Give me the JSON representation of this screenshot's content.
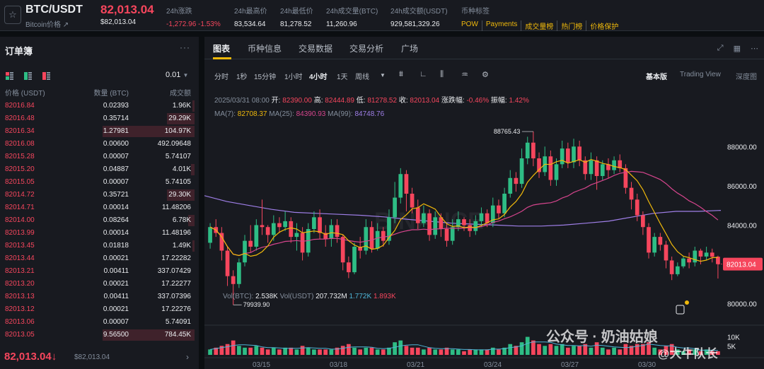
{
  "header": {
    "pair": "BTC/USDT",
    "pair_sub": "Bitcoin价格",
    "last_price": "82,013.04",
    "last_price_sub": "$82,013.04",
    "stats": [
      {
        "label": "24h涨跌",
        "value": "-1,272.96 -1.53%",
        "red": true
      },
      {
        "label": "24h最高价",
        "value": "83,534.64"
      },
      {
        "label": "24h最低价",
        "value": "81,278.52"
      },
      {
        "label": "24h成交量(BTC)",
        "value": "11,260.96"
      },
      {
        "label": "24h成交额(USDT)",
        "value": "929,581,329.26"
      }
    ],
    "tags_label": "币种标签",
    "tags": [
      "POW",
      "Payments",
      "成交量榜",
      "热门榜",
      "价格保护"
    ]
  },
  "orderbook": {
    "title": "订单簿",
    "precision": "0.01",
    "headers": {
      "price": "价格 (USDT)",
      "qty": "数量 (BTC)",
      "total": "成交额"
    },
    "rows": [
      {
        "price": "82016.84",
        "qty": "0.02393",
        "total": "1.96K",
        "depth": 0.02
      },
      {
        "price": "82016.48",
        "qty": "0.35714",
        "total": "29.29K",
        "depth": 0.3
      },
      {
        "price": "82016.34",
        "qty": "1.27981",
        "total": "104.97K",
        "depth": 1.0
      },
      {
        "price": "82016.08",
        "qty": "0.00600",
        "total": "492.09648",
        "depth": 0.0
      },
      {
        "price": "82015.28",
        "qty": "0.00007",
        "total": "5.74107",
        "depth": 0.0
      },
      {
        "price": "82015.20",
        "qty": "0.04887",
        "total": "4.01K",
        "depth": 0.04
      },
      {
        "price": "82015.05",
        "qty": "0.00007",
        "total": "5.74105",
        "depth": 0.0
      },
      {
        "price": "82014.72",
        "qty": "0.35721",
        "total": "29.30K",
        "depth": 0.3
      },
      {
        "price": "82014.71",
        "qty": "0.00014",
        "total": "11.48206",
        "depth": 0.0
      },
      {
        "price": "82014.00",
        "qty": "0.08264",
        "total": "6.78K",
        "depth": 0.07
      },
      {
        "price": "82013.99",
        "qty": "0.00014",
        "total": "11.48196",
        "depth": 0.0
      },
      {
        "price": "82013.45",
        "qty": "0.01818",
        "total": "1.49K",
        "depth": 0.02
      },
      {
        "price": "82013.44",
        "qty": "0.00021",
        "total": "17.22282",
        "depth": 0.0
      },
      {
        "price": "82013.21",
        "qty": "0.00411",
        "total": "337.07429",
        "depth": 0.0
      },
      {
        "price": "82013.20",
        "qty": "0.00021",
        "total": "17.22277",
        "depth": 0.0
      },
      {
        "price": "82013.13",
        "qty": "0.00411",
        "total": "337.07396",
        "depth": 0.0
      },
      {
        "price": "82013.12",
        "qty": "0.00021",
        "total": "17.22276",
        "depth": 0.0
      },
      {
        "price": "82013.06",
        "qty": "0.00007",
        "total": "5.74091",
        "depth": 0.0
      },
      {
        "price": "82013.05",
        "qty": "9.56500",
        "total": "784.45K",
        "depth": 1.0
      }
    ],
    "current_price": "82,013.04",
    "current_arrow": "↓",
    "current_usd": "$82,013.04",
    "more_icon": "chevron-right-icon"
  },
  "chart_tabs": [
    "图表",
    "币种信息",
    "交易数据",
    "交易分析",
    "广场"
  ],
  "intervals": [
    "分时",
    "1秒",
    "15分钟",
    "1小时",
    "4小时",
    "1天",
    "周线"
  ],
  "active_interval": "4小时",
  "views": [
    "基本版",
    "Trading View",
    "深度图"
  ],
  "ohlc": {
    "date": "2025/03/31 08:00",
    "open_label": "开:",
    "open": "82390.00",
    "high_label": "高:",
    "high": "82444.89",
    "low_label": "低:",
    "low": "81278.52",
    "close_label": "收:",
    "close": "82013.04",
    "change_label": "涨跌幅:",
    "change": "-0.46%",
    "amp_label": "振幅:",
    "amp": "1.42%"
  },
  "ma": {
    "ma7_label": "MA(7):",
    "ma7": "82708.37",
    "ma25_label": "MA(25):",
    "ma25": "84390.93",
    "ma99_label": "MA(99):",
    "ma99": "84748.76"
  },
  "vol": {
    "btc_label": "Vol(BTC):",
    "btc": "2.538K",
    "usdt_label": "Vol(USDT)",
    "usdt": "207.732M",
    "v1": "1.772K",
    "v2": "1.893K"
  },
  "watermark": "公众号 · 奶油姑娘",
  "watermark2": "@大牛队长",
  "colors": {
    "up": "#2ebd85",
    "down": "#f6465d",
    "ma7": "#f0b90b",
    "ma25": "#d6458d",
    "ma99": "#9f7fe8",
    "accent": "#f0b90b"
  },
  "chart_data": {
    "type": "candlestick",
    "price_axis": [
      "88000.00",
      "86000.00",
      "84000.00",
      "82000.00",
      "80000.00"
    ],
    "price_ylim": [
      79300,
      89200
    ],
    "vol_axis": [
      "10K",
      "5K"
    ],
    "dates": [
      "03/15",
      "03/18",
      "03/21",
      "03/24",
      "03/27",
      "03/30"
    ],
    "current_label": "82013.04",
    "high_annotation": "88765.43",
    "low_annotation": "79939.90",
    "ma99": [
      85500,
      85200,
      85000,
      84800,
      84650,
      84600,
      84550,
      84500,
      84420,
      84300,
      84200,
      84100,
      84050,
      84000,
      83950,
      83950,
      84000,
      84100,
      84200,
      84400,
      84600,
      84700,
      84700,
      84750
    ],
    "candles": [
      [
        83100,
        83900,
        82800,
        84100
      ],
      [
        83900,
        83600,
        83400,
        84300
      ],
      [
        83600,
        82700,
        82200,
        83900
      ],
      [
        82700,
        81400,
        80900,
        82900
      ],
      [
        81400,
        81000,
        79940,
        81700
      ],
      [
        81000,
        82100,
        80800,
        82300
      ],
      [
        82100,
        83200,
        81900,
        83500
      ],
      [
        83200,
        82900,
        82600,
        84000
      ],
      [
        82900,
        84000,
        82700,
        84300
      ],
      [
        84000,
        83900,
        83500,
        85300
      ],
      [
        83900,
        83500,
        83100,
        84000
      ],
      [
        83500,
        84100,
        83200,
        84500
      ],
      [
        84100,
        83900,
        83600,
        84400
      ],
      [
        83900,
        84200,
        83700,
        84700
      ],
      [
        84200,
        83400,
        83100,
        84400
      ],
      [
        83400,
        83600,
        82700,
        84100
      ],
      [
        83600,
        82600,
        82200,
        83900
      ],
      [
        82600,
        83800,
        82400,
        84100
      ],
      [
        83800,
        84400,
        83600,
        84700
      ],
      [
        84400,
        83600,
        83300,
        84800
      ],
      [
        83600,
        83300,
        82900,
        84000
      ],
      [
        83300,
        84000,
        82900,
        84300
      ],
      [
        84000,
        83400,
        83100,
        84300
      ],
      [
        83400,
        82100,
        81700,
        83500
      ],
      [
        82100,
        81600,
        81300,
        82400
      ],
      [
        81600,
        82900,
        81500,
        83100
      ],
      [
        82900,
        82700,
        82300,
        83400
      ],
      [
        82700,
        83900,
        82500,
        84300
      ],
      [
        83900,
        82800,
        82600,
        84200
      ],
      [
        82800,
        83700,
        82700,
        84100
      ],
      [
        83700,
        83200,
        82900,
        83900
      ],
      [
        83200,
        84400,
        83000,
        84800
      ],
      [
        84400,
        85400,
        84100,
        86200
      ],
      [
        85400,
        86600,
        85100,
        86900
      ],
      [
        86600,
        85600,
        84700,
        86800
      ],
      [
        85600,
        84900,
        84600,
        85900
      ],
      [
        84900,
        84100,
        83800,
        85300
      ],
      [
        84100,
        84600,
        83900,
        85000
      ],
      [
        84600,
        83500,
        83200,
        84800
      ],
      [
        83500,
        84400,
        83300,
        84700
      ],
      [
        84400,
        83800,
        83400,
        84600
      ],
      [
        83800,
        83200,
        82900,
        84100
      ],
      [
        83200,
        83900,
        83000,
        84300
      ],
      [
        83900,
        84300,
        83700,
        84700
      ],
      [
        84300,
        84000,
        83700,
        84400
      ],
      [
        84000,
        83700,
        83400,
        84300
      ],
      [
        83700,
        84200,
        83500,
        84500
      ],
      [
        84200,
        84600,
        83900,
        84900
      ],
      [
        84600,
        84100,
        83900,
        84800
      ],
      [
        84100,
        85000,
        83900,
        85400
      ],
      [
        85000,
        84600,
        84300,
        85300
      ],
      [
        84600,
        85600,
        84400,
        85900
      ],
      [
        85600,
        86400,
        85400,
        86800
      ],
      [
        86400,
        86100,
        85700,
        86700
      ],
      [
        86100,
        87400,
        85900,
        87900
      ],
      [
        87400,
        88200,
        87100,
        88500
      ],
      [
        88200,
        87400,
        87000,
        88766
      ],
      [
        87400,
        86700,
        86400,
        87700
      ],
      [
        86700,
        87500,
        86500,
        88000
      ],
      [
        87500,
        86300,
        86000,
        87800
      ],
      [
        86300,
        87100,
        86000,
        87400
      ],
      [
        87100,
        87900,
        86900,
        88300
      ],
      [
        87900,
        87200,
        86900,
        88200
      ],
      [
        87200,
        88000,
        86900,
        88400
      ],
      [
        88000,
        87300,
        87000,
        88300
      ],
      [
        87300,
        86600,
        86300,
        87500
      ],
      [
        86600,
        87300,
        86300,
        87700
      ],
      [
        87300,
        86500,
        85800,
        87500
      ],
      [
        86500,
        87100,
        86300,
        87300
      ],
      [
        87100,
        86800,
        86400,
        87400
      ],
      [
        86800,
        87300,
        86600,
        87500
      ],
      [
        87300,
        86900,
        86700,
        87600
      ],
      [
        86900,
        85900,
        85600,
        87100
      ],
      [
        85900,
        85300,
        84800,
        86200
      ],
      [
        85300,
        84500,
        84200,
        85600
      ],
      [
        84500,
        83900,
        83500,
        84700
      ],
      [
        83900,
        82600,
        82300,
        84100
      ],
      [
        82600,
        83400,
        82400,
        83600
      ],
      [
        83400,
        83000,
        82700,
        83600
      ],
      [
        83000,
        82200,
        81800,
        83200
      ],
      [
        82200,
        81500,
        81200,
        82400
      ],
      [
        81500,
        81900,
        81400,
        82100
      ],
      [
        81900,
        82300,
        81800,
        82400
      ],
      [
        82300,
        82100,
        81800,
        82600
      ],
      [
        82100,
        82700,
        81900,
        82900
      ],
      [
        82700,
        82400,
        82000,
        82800
      ],
      [
        82400,
        82600,
        82200,
        82900
      ],
      [
        82600,
        82390,
        82100,
        82800
      ],
      [
        82390,
        82013,
        81279,
        82445
      ]
    ],
    "volumes": [
      3,
      4,
      5,
      6,
      8,
      5,
      4,
      4,
      5,
      4,
      3,
      4,
      3,
      4,
      4,
      3,
      5,
      4,
      3,
      3,
      3,
      3,
      4,
      5,
      6,
      4,
      3,
      4,
      4,
      3,
      3,
      4,
      7,
      8,
      5,
      4,
      4,
      3,
      4,
      3,
      3,
      4,
      3,
      3,
      2,
      3,
      3,
      3,
      3,
      4,
      3,
      4,
      6,
      5,
      7,
      10,
      8,
      6,
      5,
      6,
      5,
      6,
      4,
      5,
      5,
      6,
      4,
      7,
      4,
      3,
      4,
      3,
      6,
      5,
      6,
      6,
      7,
      4,
      3,
      5,
      6,
      3,
      2,
      3,
      3,
      2,
      3,
      2,
      2
    ]
  }
}
